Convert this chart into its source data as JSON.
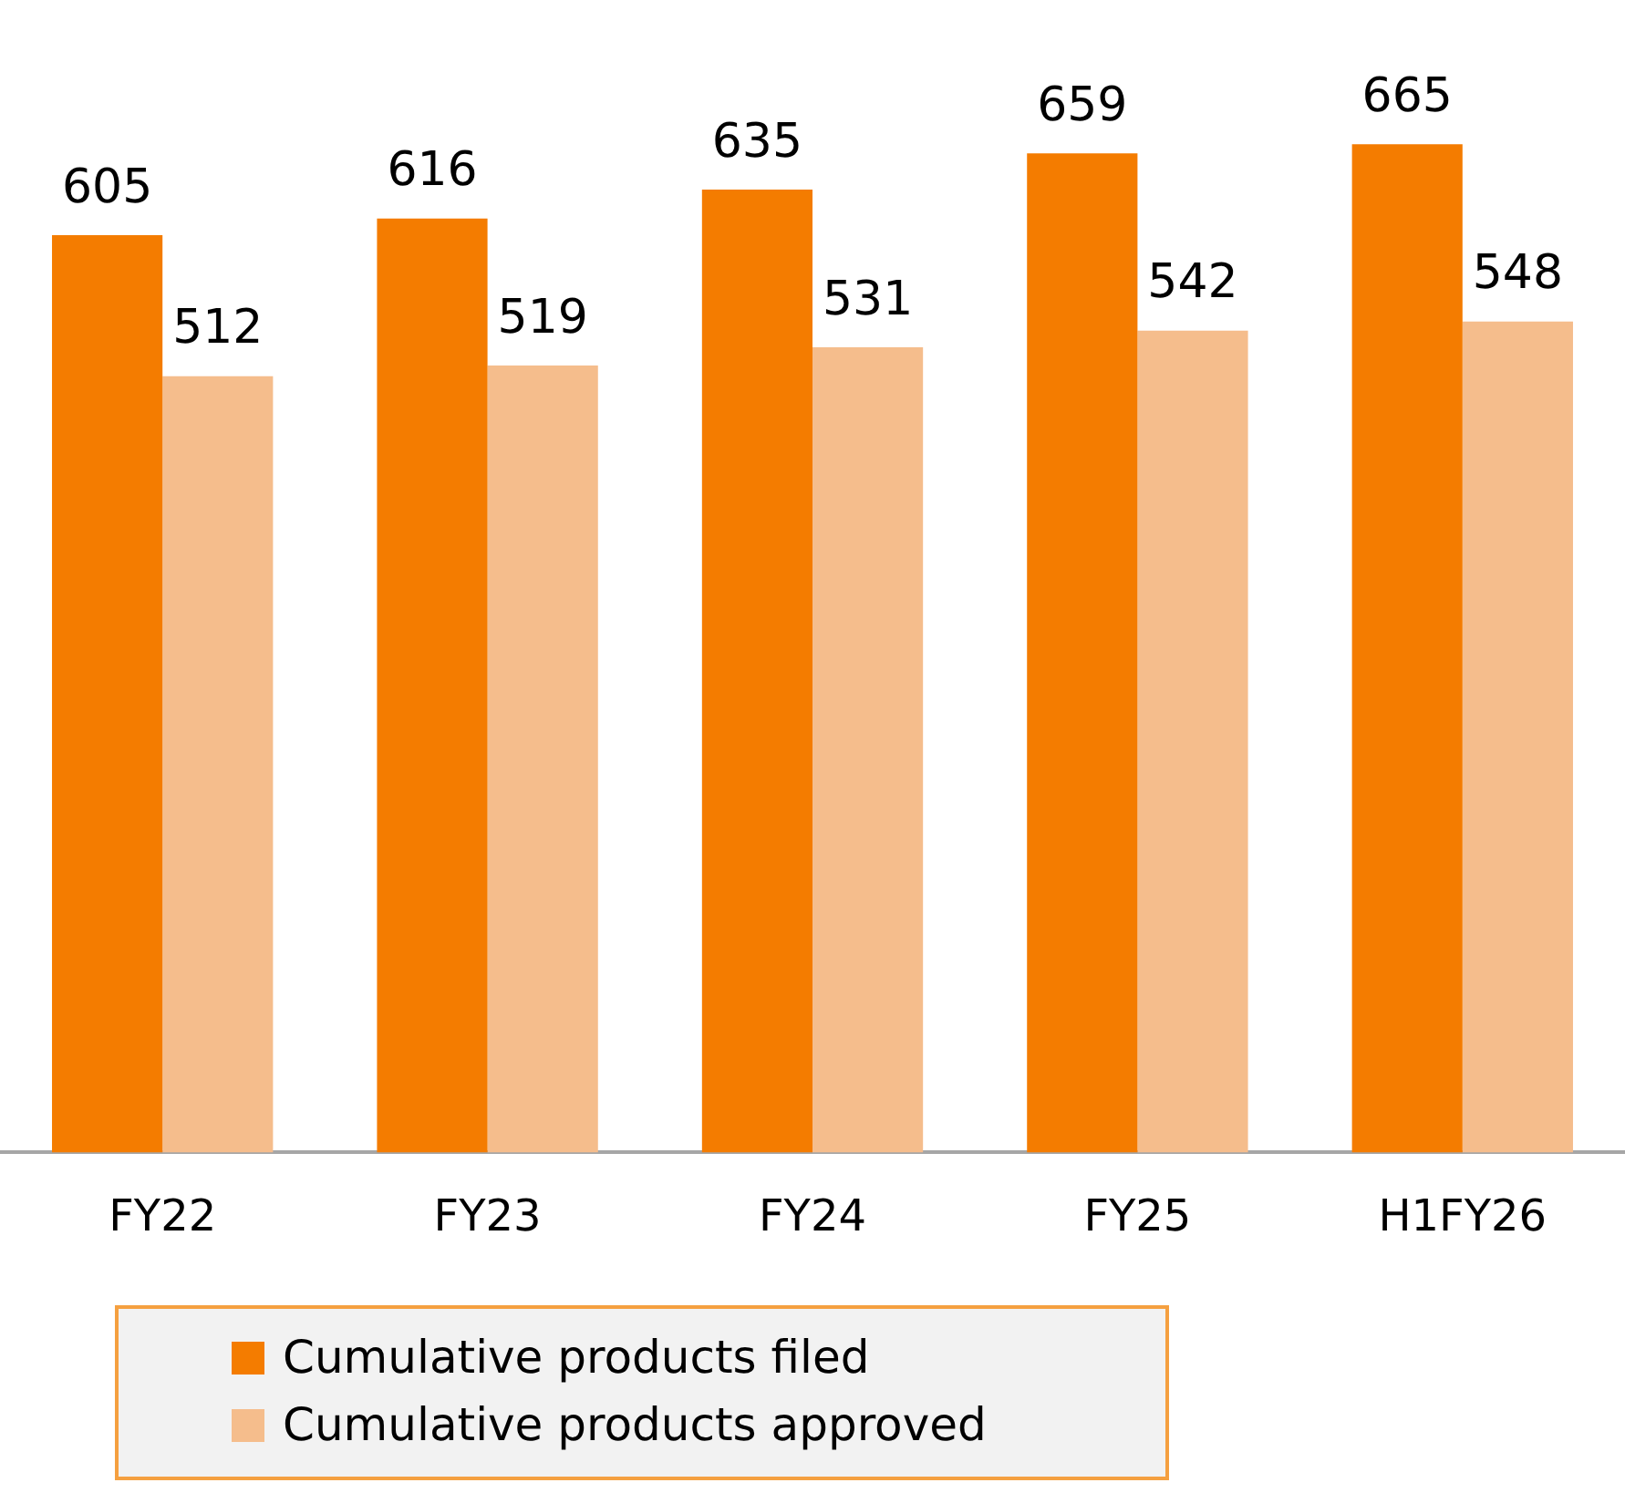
{
  "chart_data": {
    "type": "bar",
    "categories": [
      "FY22",
      "FY23",
      "FY24",
      "FY25",
      "H1FY26"
    ],
    "series": [
      {
        "name": "Cumulative products filed",
        "color": "#f47c00",
        "values": [
          605,
          616,
          635,
          659,
          665
        ]
      },
      {
        "name": "Cumulative products approved",
        "color": "#f5bd8c",
        "values": [
          512,
          519,
          531,
          542,
          548
        ]
      }
    ],
    "data_labels": true,
    "legend": "bottom left"
  }
}
